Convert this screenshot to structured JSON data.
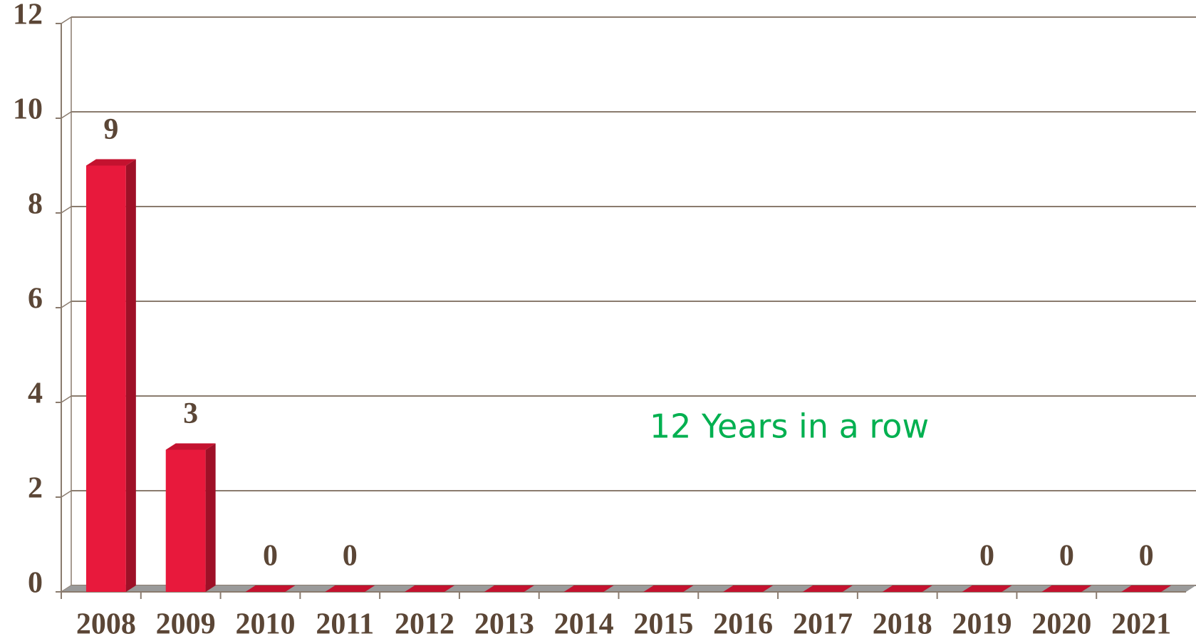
{
  "chart_data": {
    "type": "bar3d",
    "categories": [
      "2008",
      "2009",
      "2010",
      "2011",
      "2012",
      "2013",
      "2014",
      "2015",
      "2016",
      "2017",
      "2018",
      "2019",
      "2020",
      "2021"
    ],
    "values": [
      9,
      3,
      0,
      0,
      0,
      0,
      0,
      0,
      0,
      0,
      0,
      0,
      0,
      0
    ],
    "value_labels": [
      "9",
      "3",
      "0",
      "0",
      null,
      null,
      null,
      null,
      null,
      null,
      null,
      "0",
      "0",
      "0"
    ],
    "color": "#e8193c",
    "ylim": [
      0,
      12
    ],
    "yticks": [
      0,
      2,
      4,
      6,
      8,
      10,
      12
    ],
    "grid": true,
    "annotation": "12 Years in a row",
    "annotation_color": "#00b050"
  }
}
